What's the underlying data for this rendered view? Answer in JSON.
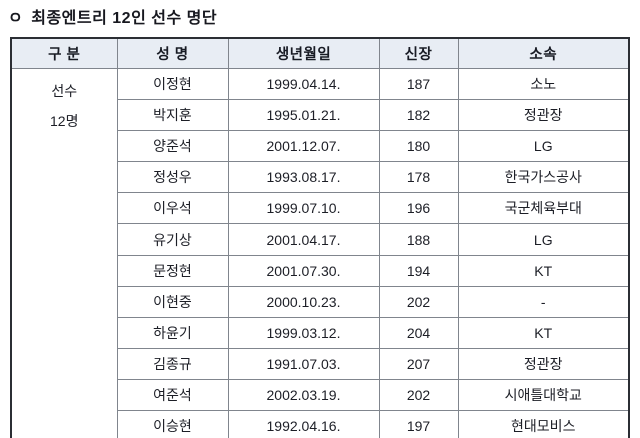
{
  "title": {
    "bullet": "ㅇ",
    "text": "최종엔트리 12인 선수 명단"
  },
  "table": {
    "headers": {
      "group": "구 분",
      "name": "성  명",
      "birth": "생년월일",
      "height": "신장",
      "team": "소속"
    },
    "group_label": {
      "line1": "선수",
      "line2": "12명"
    },
    "rows": [
      {
        "name": "이정현",
        "birth": "1999.04.14.",
        "height": "187",
        "team": "소노"
      },
      {
        "name": "박지훈",
        "birth": "1995.01.21.",
        "height": "182",
        "team": "정관장"
      },
      {
        "name": "양준석",
        "birth": "2001.12.07.",
        "height": "180",
        "team": "LG"
      },
      {
        "name": "정성우",
        "birth": "1993.08.17.",
        "height": "178",
        "team": "한국가스공사"
      },
      {
        "name": "이우석",
        "birth": "1999.07.10.",
        "height": "196",
        "team": "국군체육부대"
      },
      {
        "name": "유기상",
        "birth": "2001.04.17.",
        "height": "188",
        "team": "LG"
      },
      {
        "name": "문정현",
        "birth": "2001.07.30.",
        "height": "194",
        "team": "KT"
      },
      {
        "name": "이현중",
        "birth": "2000.10.23.",
        "height": "202",
        "team": "-"
      },
      {
        "name": "하윤기",
        "birth": "1999.03.12.",
        "height": "204",
        "team": "KT"
      },
      {
        "name": "김종규",
        "birth": "1991.07.03.",
        "height": "207",
        "team": "정관장"
      },
      {
        "name": "여준석",
        "birth": "2002.03.19.",
        "height": "202",
        "team": "시애틀대학교"
      },
      {
        "name": "이승현",
        "birth": "1992.04.16.",
        "height": "197",
        "team": "현대모비스"
      }
    ],
    "colors": {
      "header_bg": "#e8edf4",
      "outer_border": "#2b2e34",
      "inner_border": "#80858d",
      "text": "#1c1e26"
    }
  }
}
